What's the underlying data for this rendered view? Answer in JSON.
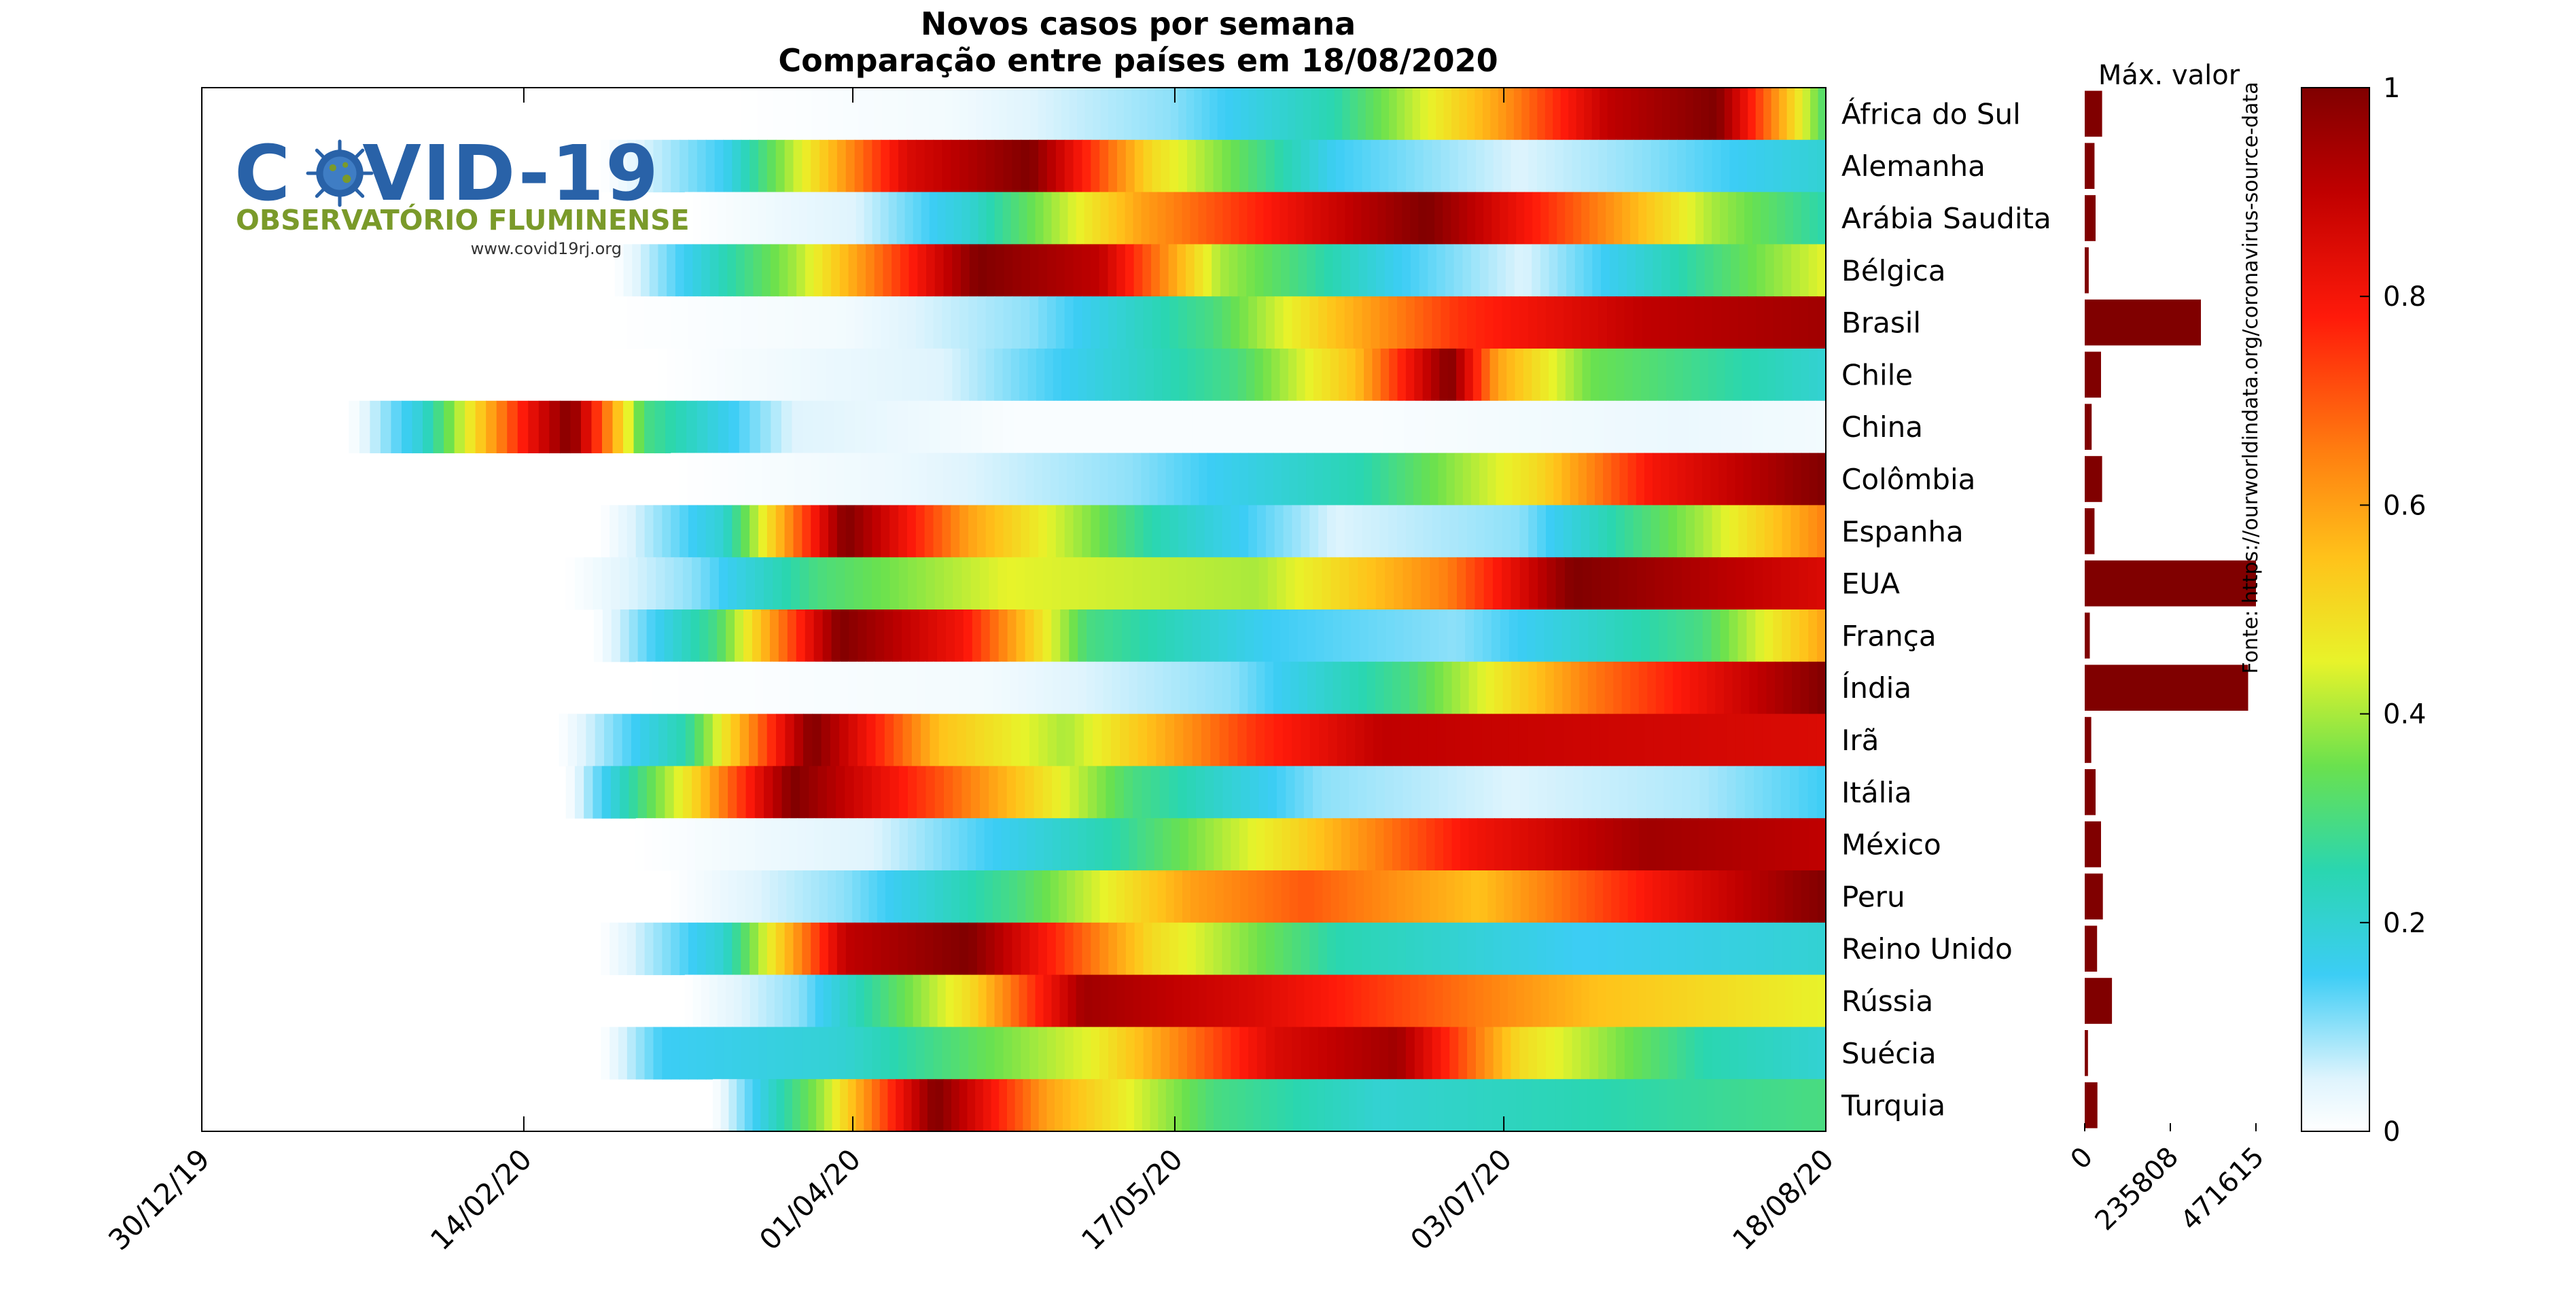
{
  "title_line1": "Novos casos por semana",
  "title_line2": "Comparação entre países em 18/08/2020",
  "max_label": "Máx. valor",
  "source_label": "Fonte: https://ourworldindata.org/coronavirus-source-data",
  "logo": {
    "main_before": "C",
    "main_after": "VID-19",
    "subtitle": "OBSERVATÓRIO FLUMINENSE",
    "url": "www.covid19rj.org",
    "color_primary": "#2962a8",
    "color_secondary": "#7a9a2a"
  },
  "chart_data": {
    "type": "heatmap",
    "title": "Novos casos por semana — Comparação entre países em 18/08/2020",
    "x_tick_labels": [
      "30/12/19",
      "14/02/20",
      "01/04/20",
      "17/05/20",
      "03/07/20",
      "18/08/20"
    ],
    "x_range": [
      "30/12/19",
      "18/08/20"
    ],
    "colorbar": {
      "min": 0,
      "max": 1,
      "ticks": [
        "0",
        "0.2",
        "0.4",
        "0.6",
        "0.8",
        "1"
      ],
      "colormap": "jet-white"
    },
    "max_axis": {
      "ticks": [
        "0",
        "235808",
        "471615"
      ],
      "max": 471615
    },
    "rows": [
      {
        "name": "África do Sul",
        "start": "15/03/20",
        "max_value": 48000,
        "ctrl": [
          [
            0,
            0
          ],
          [
            0.2,
            0.02
          ],
          [
            0.4,
            0.1
          ],
          [
            0.55,
            0.25
          ],
          [
            0.7,
            0.6
          ],
          [
            0.8,
            0.9
          ],
          [
            0.9,
            1
          ],
          [
            1,
            0.3
          ]
        ]
      },
      {
        "name": "Alemanha",
        "start": "25/02/20",
        "max_value": 27000,
        "ctrl": [
          [
            0,
            0
          ],
          [
            0.1,
            0.15
          ],
          [
            0.25,
            0.85
          ],
          [
            0.35,
            1
          ],
          [
            0.45,
            0.5
          ],
          [
            0.6,
            0.15
          ],
          [
            0.75,
            0.05
          ],
          [
            0.85,
            0.1
          ],
          [
            1,
            0.2
          ]
        ]
      },
      {
        "name": "Arábia Saudita",
        "start": "08/03/20",
        "max_value": 30000,
        "ctrl": [
          [
            0,
            0
          ],
          [
            0.15,
            0.05
          ],
          [
            0.25,
            0.2
          ],
          [
            0.4,
            0.6
          ],
          [
            0.55,
            0.85
          ],
          [
            0.65,
            1
          ],
          [
            0.8,
            0.65
          ],
          [
            0.9,
            0.4
          ],
          [
            1,
            0.25
          ]
        ]
      },
      {
        "name": "Bélgica",
        "start": "27/02/20",
        "max_value": 11000,
        "ctrl": [
          [
            0,
            0
          ],
          [
            0.15,
            0.4
          ],
          [
            0.3,
            1
          ],
          [
            0.4,
            0.9
          ],
          [
            0.5,
            0.4
          ],
          [
            0.65,
            0.15
          ],
          [
            0.75,
            0.05
          ],
          [
            0.85,
            0.2
          ],
          [
            1,
            0.45
          ]
        ]
      },
      {
        "name": "Brasil",
        "start": "25/02/20",
        "max_value": 320000,
        "ctrl": [
          [
            0,
            0
          ],
          [
            0.2,
            0.02
          ],
          [
            0.35,
            0.1
          ],
          [
            0.5,
            0.3
          ],
          [
            0.6,
            0.55
          ],
          [
            0.7,
            0.75
          ],
          [
            0.85,
            0.9
          ],
          [
            1,
            0.95
          ]
        ]
      },
      {
        "name": "Chile",
        "start": "03/03/20",
        "max_value": 45000,
        "ctrl": [
          [
            0,
            0
          ],
          [
            0.25,
            0.05
          ],
          [
            0.5,
            0.3
          ],
          [
            0.6,
            0.55
          ],
          [
            0.68,
            1
          ],
          [
            0.72,
            0.6
          ],
          [
            0.8,
            0.35
          ],
          [
            1,
            0.2
          ]
        ]
      },
      {
        "name": "China",
        "start": "20/01/20",
        "max_value": 19000,
        "ctrl": [
          [
            0,
            0
          ],
          [
            0.05,
            0.2
          ],
          [
            0.12,
            0.8
          ],
          [
            0.15,
            1
          ],
          [
            0.2,
            0.3
          ],
          [
            0.3,
            0.05
          ],
          [
            0.45,
            0.01
          ],
          [
            0.7,
            0.01
          ],
          [
            0.9,
            0.03
          ],
          [
            1,
            0.02
          ]
        ]
      },
      {
        "name": "Colômbia",
        "start": "06/03/20",
        "max_value": 48000,
        "ctrl": [
          [
            0,
            0
          ],
          [
            0.2,
            0.03
          ],
          [
            0.4,
            0.1
          ],
          [
            0.6,
            0.25
          ],
          [
            0.75,
            0.5
          ],
          [
            0.85,
            0.8
          ],
          [
            1,
            1
          ]
        ]
      },
      {
        "name": "Espanha",
        "start": "25/02/20",
        "max_value": 27000,
        "ctrl": [
          [
            0,
            0
          ],
          [
            0.1,
            0.2
          ],
          [
            0.2,
            1
          ],
          [
            0.3,
            0.6
          ],
          [
            0.45,
            0.25
          ],
          [
            0.6,
            0.05
          ],
          [
            0.75,
            0.1
          ],
          [
            0.9,
            0.4
          ],
          [
            1,
            0.65
          ]
        ]
      },
      {
        "name": "EUA",
        "start": "20/02/20",
        "max_value": 471615,
        "ctrl": [
          [
            0,
            0
          ],
          [
            0.1,
            0.1
          ],
          [
            0.2,
            0.3
          ],
          [
            0.35,
            0.45
          ],
          [
            0.55,
            0.4
          ],
          [
            0.7,
            0.65
          ],
          [
            0.8,
            1
          ],
          [
            1,
            0.85
          ]
        ]
      },
      {
        "name": "França",
        "start": "24/02/20",
        "max_value": 14000,
        "ctrl": [
          [
            0,
            0
          ],
          [
            0.1,
            0.3
          ],
          [
            0.2,
            1
          ],
          [
            0.3,
            0.8
          ],
          [
            0.4,
            0.3
          ],
          [
            0.55,
            0.15
          ],
          [
            0.7,
            0.1
          ],
          [
            0.9,
            0.3
          ],
          [
            1,
            0.6
          ]
        ]
      },
      {
        "name": "Índia",
        "start": "01/03/20",
        "max_value": 450000,
        "ctrl": [
          [
            0,
            0
          ],
          [
            0.3,
            0.02
          ],
          [
            0.5,
            0.1
          ],
          [
            0.65,
            0.3
          ],
          [
            0.8,
            0.65
          ],
          [
            1,
            1
          ]
        ]
      },
      {
        "name": "Irã",
        "start": "19/02/20",
        "max_value": 18000,
        "ctrl": [
          [
            0,
            0
          ],
          [
            0.1,
            0.25
          ],
          [
            0.2,
            1
          ],
          [
            0.3,
            0.55
          ],
          [
            0.4,
            0.4
          ],
          [
            0.55,
            0.75
          ],
          [
            0.65,
            0.9
          ],
          [
            1,
            0.85
          ]
        ]
      },
      {
        "name": "Itália",
        "start": "20/02/20",
        "max_value": 30000,
        "ctrl": [
          [
            0,
            0
          ],
          [
            0.1,
            0.5
          ],
          [
            0.18,
            1
          ],
          [
            0.3,
            0.7
          ],
          [
            0.45,
            0.3
          ],
          [
            0.6,
            0.1
          ],
          [
            0.75,
            0.05
          ],
          [
            0.9,
            0.08
          ],
          [
            1,
            0.15
          ]
        ]
      },
      {
        "name": "México",
        "start": "01/03/20",
        "max_value": 45000,
        "ctrl": [
          [
            0,
            0
          ],
          [
            0.2,
            0.05
          ],
          [
            0.4,
            0.25
          ],
          [
            0.55,
            0.5
          ],
          [
            0.7,
            0.8
          ],
          [
            0.85,
            0.95
          ],
          [
            1,
            0.9
          ]
        ]
      },
      {
        "name": "Peru",
        "start": "06/03/20",
        "max_value": 50000,
        "ctrl": [
          [
            0,
            0
          ],
          [
            0.15,
            0.1
          ],
          [
            0.3,
            0.3
          ],
          [
            0.45,
            0.6
          ],
          [
            0.55,
            0.7
          ],
          [
            0.7,
            0.55
          ],
          [
            0.85,
            0.8
          ],
          [
            1,
            1
          ]
        ]
      },
      {
        "name": "Reino Unido",
        "start": "25/02/20",
        "max_value": 34000,
        "ctrl": [
          [
            0,
            0
          ],
          [
            0.1,
            0.2
          ],
          [
            0.2,
            0.9
          ],
          [
            0.3,
            1
          ],
          [
            0.45,
            0.5
          ],
          [
            0.6,
            0.25
          ],
          [
            0.8,
            0.15
          ],
          [
            1,
            0.2
          ]
        ]
      },
      {
        "name": "Rússia",
        "start": "08/03/20",
        "max_value": 75000,
        "ctrl": [
          [
            0,
            0
          ],
          [
            0.1,
            0.1
          ],
          [
            0.25,
            0.5
          ],
          [
            0.35,
            0.95
          ],
          [
            0.5,
            0.85
          ],
          [
            0.65,
            0.7
          ],
          [
            0.8,
            0.55
          ],
          [
            1,
            0.45
          ]
        ]
      },
      {
        "name": "Suécia",
        "start": "25/02/20",
        "max_value": 9000,
        "ctrl": [
          [
            0,
            0
          ],
          [
            0.05,
            0.15
          ],
          [
            0.2,
            0.2
          ],
          [
            0.4,
            0.45
          ],
          [
            0.55,
            0.85
          ],
          [
            0.65,
            0.95
          ],
          [
            0.75,
            0.5
          ],
          [
            0.9,
            0.25
          ],
          [
            1,
            0.2
          ]
        ]
      },
      {
        "name": "Turquia",
        "start": "12/03/20",
        "max_value": 35000,
        "ctrl": [
          [
            0,
            0
          ],
          [
            0.1,
            0.4
          ],
          [
            0.2,
            1
          ],
          [
            0.3,
            0.6
          ],
          [
            0.45,
            0.3
          ],
          [
            0.6,
            0.2
          ],
          [
            0.8,
            0.25
          ],
          [
            1,
            0.3
          ]
        ]
      }
    ]
  }
}
